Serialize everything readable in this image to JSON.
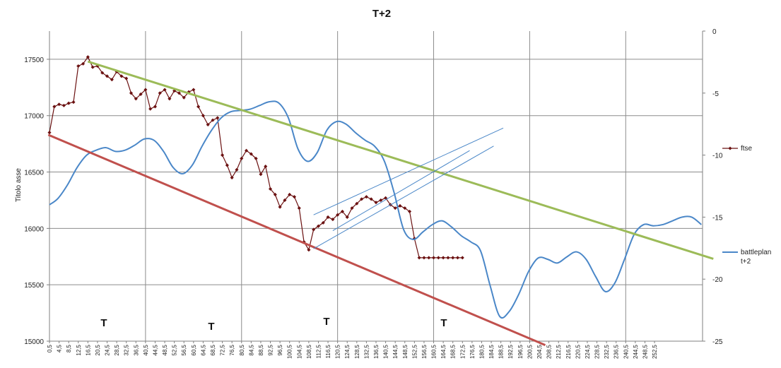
{
  "chart_data": {
    "type": "line",
    "title": "T+2",
    "ylabel": "Titolo asse",
    "xlabel": "",
    "ylim": [
      15000,
      17750
    ],
    "y2lim": [
      -25,
      0
    ],
    "yticks": [
      15000,
      15500,
      16000,
      16500,
      17000,
      17500
    ],
    "y2ticks": [
      0,
      -5,
      -10,
      -15,
      -20,
      -25
    ],
    "xlim": [
      0.5,
      272.5
    ],
    "xtick_start": 0.5,
    "xtick_step": 4,
    "xtick_end": 252.5,
    "grid": true,
    "legend_position": "right",
    "annotations": [
      {
        "text": "T",
        "x": 45
      },
      {
        "text": "T",
        "x": 144
      },
      {
        "text": "T",
        "x": 244
      },
      {
        "text": "T",
        "x": 346
      }
    ],
    "series": [
      {
        "name": "ftse",
        "axis": "left",
        "color": "#6b1111",
        "marker": "diamond",
        "x": [
          0.5,
          2.5,
          4.5,
          6.5,
          8.5,
          10.5,
          12.5,
          14.5,
          16.5,
          18.5,
          20.5,
          22.5,
          24.5,
          26.5,
          28.5,
          30.5,
          32.5,
          34.5,
          36.5,
          38.5,
          40.5,
          42.5,
          44.5,
          46.5,
          48.5,
          50.5,
          52.5,
          54.5,
          56.5,
          58.5,
          60.5,
          62.5,
          64.5,
          66.5,
          68.5,
          70.5,
          72.5,
          74.5,
          76.5,
          78.5,
          80.5,
          82.5,
          84.5,
          86.5,
          88.5,
          90.5,
          92.5,
          94.5,
          96.5,
          98.5,
          100.5,
          102.5,
          104.5,
          106.5,
          108.5,
          110.5,
          112.5,
          114.5,
          116.5,
          118.5,
          120.5,
          122.5,
          124.5,
          126.5,
          128.5,
          130.5,
          132.5,
          134.5,
          136.5,
          138.5,
          140.5,
          142.5,
          144.5,
          146.5,
          148.5,
          150.5,
          152.5,
          154.5,
          156.5,
          158.5,
          160.5,
          162.5,
          164.5,
          166.5,
          168.5,
          170.5,
          172.5
        ],
        "values": [
          16850,
          17080,
          17100,
          17090,
          17110,
          17120,
          17440,
          17460,
          17520,
          17430,
          17440,
          17380,
          17350,
          17320,
          17390,
          17350,
          17330,
          17200,
          17150,
          17190,
          17230,
          17060,
          17080,
          17200,
          17230,
          17150,
          17220,
          17200,
          17160,
          17210,
          17230,
          17080,
          17000,
          16920,
          16960,
          16980,
          16650,
          16560,
          16450,
          16520,
          16620,
          16690,
          16660,
          16620,
          16480,
          16550,
          16350,
          16300,
          16190,
          16250,
          16300,
          16280,
          16180,
          15880,
          15810,
          15990,
          16020,
          16050,
          16100,
          16080,
          16120,
          16150,
          16100,
          16180,
          16220,
          16260,
          16280,
          16260,
          16230,
          16250,
          16270,
          16210,
          16180,
          16200,
          16180,
          16150,
          15910,
          15740,
          15740,
          15740,
          15740,
          15740,
          15740,
          15740,
          15740,
          15740,
          15740
        ]
      },
      {
        "name": "battleplan t+2",
        "axis": "right",
        "color": "#4a87c8",
        "x": [
          0.5,
          4,
          8,
          12,
          16,
          20,
          24,
          28,
          32,
          36,
          40,
          44,
          48,
          52,
          56,
          60,
          64,
          68,
          72,
          76,
          80,
          84,
          88,
          92,
          96,
          100,
          104,
          108,
          112,
          116,
          120,
          124,
          128,
          132,
          136,
          140,
          144,
          148,
          152,
          156,
          160,
          164,
          168,
          172,
          176,
          180,
          184,
          188,
          192,
          196,
          200,
          204,
          208,
          212,
          216,
          220,
          224,
          228,
          232,
          236,
          240,
          244,
          248,
          252,
          256,
          260,
          264,
          268,
          272
        ],
        "values": [
          -14,
          -13.5,
          -12.4,
          -11,
          -10,
          -9.6,
          -9.4,
          -9.7,
          -9.6,
          -9.2,
          -8.7,
          -8.8,
          -9.7,
          -11,
          -11.5,
          -10.8,
          -9.3,
          -8,
          -7,
          -6.5,
          -6.4,
          -6.3,
          -6,
          -5.7,
          -5.8,
          -7,
          -9.5,
          -10.5,
          -9.8,
          -8,
          -7.3,
          -7.5,
          -8.2,
          -8.8,
          -9.3,
          -10.5,
          -13,
          -16,
          -16.8,
          -16.2,
          -15.6,
          -15.3,
          -15.8,
          -16.5,
          -17,
          -17.7,
          -20.5,
          -23,
          -22.6,
          -21.2,
          -19.4,
          -18.3,
          -18.4,
          -18.7,
          -18.2,
          -17.8,
          -18.4,
          -19.8,
          -21,
          -20.3,
          -18.4,
          -16.4,
          -15.6,
          -15.7,
          -15.6,
          -15.3,
          -15,
          -15,
          -15.6
        ]
      }
    ],
    "trendlines": [
      {
        "color": "#9cbb58",
        "axis": "left",
        "x1": 16.5,
        "y1": 17480,
        "x2": 277,
        "y2": 15730
      },
      {
        "color": "#c0504d",
        "axis": "left",
        "x1": 0,
        "y1": 16830,
        "x2": 207,
        "y2": 14965
      },
      {
        "color": "#4a87c8",
        "axis": "left",
        "x1": 110.5,
        "y1": 15820,
        "x2": 185.5,
        "y2": 16730
      },
      {
        "color": "#4a87c8",
        "axis": "left",
        "x1": 110.5,
        "y1": 16120,
        "x2": 189.5,
        "y2": 16890
      },
      {
        "color": "#4a87c8",
        "axis": "left",
        "x1": 118.5,
        "y1": 15980,
        "x2": 175.5,
        "y2": 16690
      }
    ]
  }
}
